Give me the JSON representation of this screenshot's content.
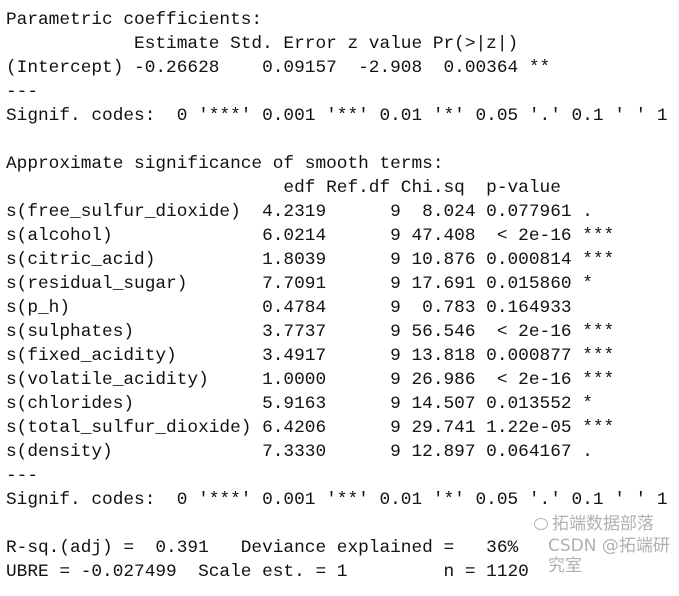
{
  "parametric": {
    "title": "Parametric coefficients:",
    "header": "            Estimate Std. Error z value Pr(>|z|)",
    "rows": [
      "(Intercept) -0.26628    0.09157  -2.908  0.00364 **"
    ],
    "separator": "---",
    "signif": "Signif. codes:  0 '***' 0.001 '**' 0.01 '*' 0.05 '.' 0.1 ' ' 1"
  },
  "smooth": {
    "title": "Approximate significance of smooth terms:",
    "header": "                          edf Ref.df Chi.sq  p-value",
    "rows": [
      "s(free_sulfur_dioxide)  4.2319      9  8.024 0.077961 .",
      "s(alcohol)              6.0214      9 47.408  < 2e-16 ***",
      "s(citric_acid)          1.8039      9 10.876 0.000814 ***",
      "s(residual_sugar)       7.7091      9 17.691 0.015860 *",
      "s(p_h)                  0.4784      9  0.783 0.164933",
      "s(sulphates)            3.7737      9 56.546  < 2e-16 ***",
      "s(fixed_acidity)        3.4917      9 13.818 0.000877 ***",
      "s(volatile_acidity)     1.0000      9 26.986  < 2e-16 ***",
      "s(chlorides)            5.9163      9 14.507 0.013552 *",
      "s(total_sulfur_dioxide) 6.4206      9 29.741 1.22e-05 ***",
      "s(density)              7.3330      9 12.897 0.064167 ."
    ],
    "separator": "---",
    "signif": "Signif. codes:  0 '***' 0.001 '**' 0.01 '*' 0.05 '.' 0.1 ' ' 1"
  },
  "summary": {
    "line1": "R-sq.(adj) =  0.391   Deviance explained =   36%",
    "line2": "UBRE = -0.027499  Scale est. = 1         n = 1120"
  },
  "watermark": {
    "line1": "拓端数据部落",
    "line2": "CSDN @拓端研究室"
  }
}
